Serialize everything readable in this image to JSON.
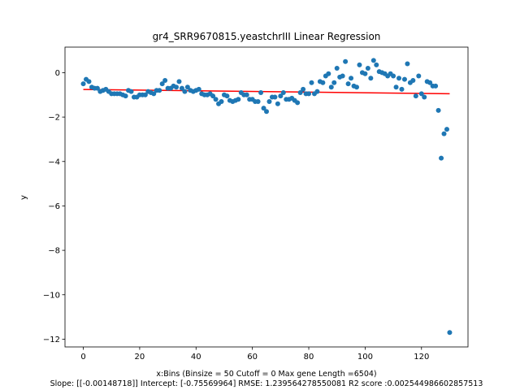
{
  "chart_data": {
    "type": "scatter",
    "title": "gr4_SRR9670815.yeastchrIII Linear Regression",
    "xlabel_line1": "x:Bins  (Binsize = 50 Cutoff = 0 Max gene Length =6504)",
    "xlabel_line2": "Slope: [[-0.00148718]] Intercept: [-0.75569964] RMSE: 1.239564278550081 R2 score :0.002544986602857513",
    "ylabel": "y",
    "xlim": [
      -6.5,
      136.5
    ],
    "ylim": [
      -12.35,
      1.15
    ],
    "xticks": [
      0,
      20,
      40,
      60,
      80,
      100,
      120
    ],
    "yticks": [
      0,
      -2,
      -4,
      -6,
      -8,
      -10,
      -12
    ],
    "xtick_labels": [
      "0",
      "20",
      "40",
      "60",
      "80",
      "100",
      "120"
    ],
    "ytick_labels": [
      "0",
      "−2",
      "−4",
      "−6",
      "−8",
      "−10",
      "−12"
    ],
    "grid": false,
    "colors": {
      "points": "#1f77b4",
      "regression_line": "#ff0000"
    },
    "regression": {
      "slope": -0.00148718,
      "intercept": -0.75569964,
      "x_start": 0,
      "x_end": 130
    },
    "x": [
      0,
      1,
      2,
      3,
      4,
      5,
      6,
      7,
      8,
      9,
      10,
      11,
      12,
      13,
      14,
      15,
      16,
      17,
      18,
      19,
      20,
      21,
      22,
      23,
      24,
      25,
      26,
      27,
      28,
      29,
      30,
      31,
      32,
      33,
      34,
      35,
      36,
      37,
      38,
      39,
      40,
      41,
      42,
      43,
      44,
      45,
      46,
      47,
      48,
      49,
      50,
      51,
      52,
      53,
      54,
      55,
      56,
      57,
      58,
      59,
      60,
      61,
      62,
      63,
      64,
      65,
      66,
      67,
      68,
      69,
      70,
      71,
      72,
      73,
      74,
      75,
      76,
      77,
      78,
      79,
      80,
      81,
      82,
      83,
      84,
      85,
      86,
      87,
      88,
      89,
      90,
      91,
      92,
      93,
      94,
      95,
      96,
      97,
      98,
      99,
      100,
      101,
      102,
      103,
      104,
      105,
      106,
      107,
      108,
      109,
      110,
      111,
      112,
      113,
      114,
      115,
      116,
      117,
      118,
      119,
      120,
      121,
      122,
      123,
      124,
      125,
      126,
      127,
      128,
      129,
      130
    ],
    "y": [
      -0.5,
      -0.3,
      -0.4,
      -0.65,
      -0.7,
      -0.7,
      -0.85,
      -0.8,
      -0.75,
      -0.85,
      -0.95,
      -0.95,
      -0.95,
      -0.95,
      -1.0,
      -1.05,
      -0.8,
      -0.85,
      -1.1,
      -1.1,
      -1.0,
      -1.0,
      -1.0,
      -0.85,
      -0.9,
      -0.95,
      -0.8,
      -0.8,
      -0.5,
      -0.35,
      -0.7,
      -0.7,
      -0.6,
      -0.65,
      -0.4,
      -0.7,
      -0.85,
      -0.65,
      -0.8,
      -0.85,
      -0.8,
      -0.75,
      -0.95,
      -1.0,
      -1.0,
      -0.95,
      -1.05,
      -1.2,
      -1.4,
      -1.3,
      -1.0,
      -1.05,
      -1.25,
      -1.3,
      -1.25,
      -1.2,
      -0.9,
      -1.0,
      -1.0,
      -1.2,
      -1.2,
      -1.3,
      -1.3,
      -0.9,
      -1.6,
      -1.75,
      -1.3,
      -1.1,
      -1.1,
      -1.4,
      -1.05,
      -0.9,
      -1.2,
      -1.2,
      -1.15,
      -1.25,
      -1.35,
      -0.9,
      -0.75,
      -0.95,
      -0.95,
      -0.45,
      -0.95,
      -0.85,
      -0.4,
      -0.45,
      -0.15,
      -0.05,
      -0.65,
      -0.45,
      0.2,
      -0.2,
      -0.15,
      0.5,
      -0.5,
      -0.25,
      -0.6,
      -0.65,
      0.35,
      0.0,
      -0.05,
      0.2,
      -0.25,
      0.55,
      0.35,
      0.05,
      0.0,
      -0.05,
      -0.15,
      -0.05,
      -0.15,
      -0.65,
      -0.25,
      -0.75,
      -0.3,
      0.4,
      -0.45,
      -0.35,
      -1.05,
      -0.15,
      -0.95,
      -1.1,
      -0.4,
      -0.45,
      -0.6,
      -0.6,
      -1.7,
      -3.85,
      -2.75,
      -2.55,
      -11.7
    ]
  }
}
